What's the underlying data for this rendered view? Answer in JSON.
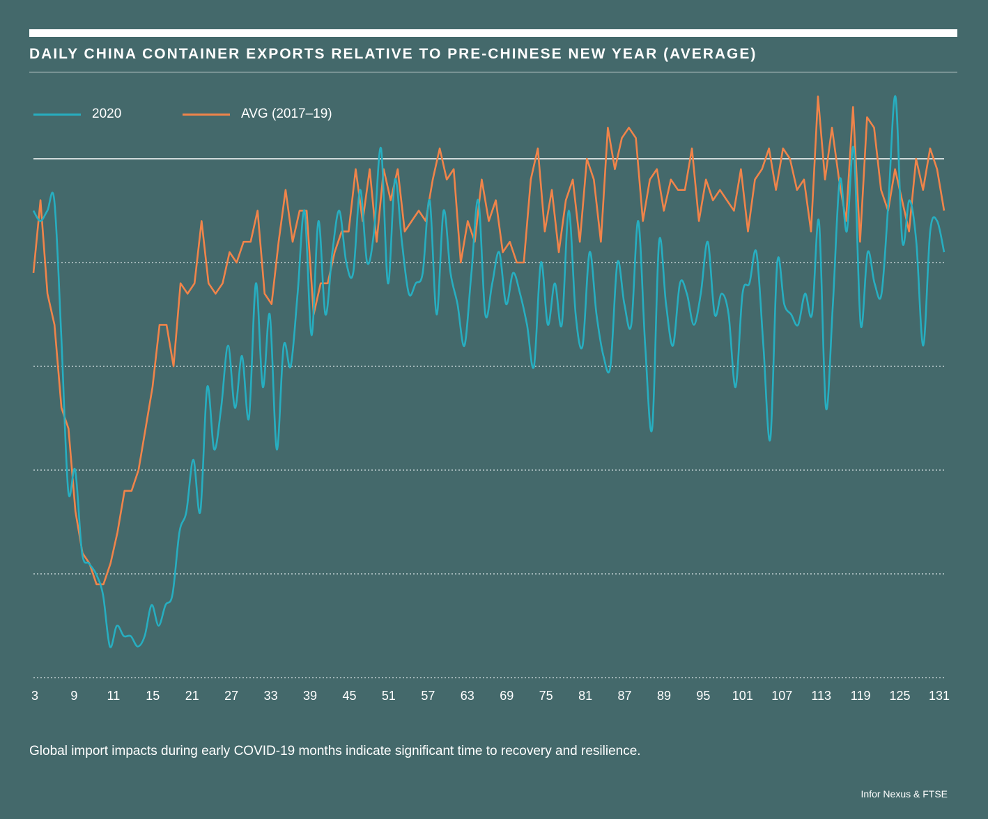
{
  "chart_data": {
    "type": "line",
    "title": "DAILY CHINA CONTAINER EXPORTS RELATIVE TO PRE-CHINESE NEW YEAR (AVERAGE)",
    "xlabel": "",
    "ylabel": "",
    "x_ticks": [
      "3",
      "9",
      "11",
      "15",
      "21",
      "27",
      "33",
      "39",
      "45",
      "51",
      "57",
      "63",
      "69",
      "75",
      "81",
      "87",
      "89",
      "95",
      "101",
      "107",
      "113",
      "119",
      "125",
      "131"
    ],
    "y_range": [
      -0.5,
      0.04
    ],
    "y_gridlines_dotted": [
      -0.1,
      -0.2,
      -0.3,
      -0.4,
      -0.5
    ],
    "y_reference_line": 0.0,
    "legend_position": "top-left",
    "series": [
      {
        "name": "2020",
        "color": "#27aec0",
        "values": [
          -0.05,
          -0.06,
          -0.05,
          -0.04,
          -0.17,
          -0.32,
          -0.3,
          -0.38,
          -0.39,
          -0.4,
          -0.42,
          -0.47,
          -0.45,
          -0.46,
          -0.46,
          -0.47,
          -0.46,
          -0.43,
          -0.45,
          -0.43,
          -0.42,
          -0.36,
          -0.34,
          -0.29,
          -0.34,
          -0.22,
          -0.28,
          -0.24,
          -0.18,
          -0.24,
          -0.19,
          -0.25,
          -0.12,
          -0.22,
          -0.15,
          -0.28,
          -0.18,
          -0.2,
          -0.13,
          -0.05,
          -0.17,
          -0.06,
          -0.15,
          -0.09,
          -0.05,
          -0.1,
          -0.11,
          -0.03,
          -0.1,
          -0.07,
          0.01,
          -0.12,
          -0.02,
          -0.08,
          -0.13,
          -0.12,
          -0.11,
          -0.04,
          -0.15,
          -0.05,
          -0.11,
          -0.14,
          -0.18,
          -0.11,
          -0.04,
          -0.15,
          -0.12,
          -0.09,
          -0.14,
          -0.11,
          -0.13,
          -0.16,
          -0.2,
          -0.1,
          -0.16,
          -0.12,
          -0.16,
          -0.05,
          -0.15,
          -0.18,
          -0.09,
          -0.15,
          -0.19,
          -0.2,
          -0.1,
          -0.14,
          -0.16,
          -0.06,
          -0.18,
          -0.26,
          -0.08,
          -0.14,
          -0.18,
          -0.12,
          -0.13,
          -0.16,
          -0.13,
          -0.08,
          -0.15,
          -0.13,
          -0.15,
          -0.22,
          -0.13,
          -0.12,
          -0.09,
          -0.18,
          -0.27,
          -0.1,
          -0.14,
          -0.15,
          -0.16,
          -0.13,
          -0.15,
          -0.06,
          -0.24,
          -0.14,
          -0.02,
          -0.07,
          0.01,
          -0.16,
          -0.09,
          -0.12,
          -0.13,
          -0.04,
          0.06,
          -0.08,
          -0.04,
          -0.08,
          -0.18,
          -0.07,
          -0.06,
          -0.09
        ]
      },
      {
        "name": "AVG (2017–19)",
        "color": "#f0844a",
        "values": [
          -0.11,
          -0.04,
          -0.13,
          -0.16,
          -0.24,
          -0.26,
          -0.34,
          -0.38,
          -0.39,
          -0.41,
          -0.41,
          -0.39,
          -0.36,
          -0.32,
          -0.32,
          -0.3,
          -0.26,
          -0.22,
          -0.16,
          -0.16,
          -0.2,
          -0.12,
          -0.13,
          -0.12,
          -0.06,
          -0.12,
          -0.13,
          -0.12,
          -0.09,
          -0.1,
          -0.08,
          -0.08,
          -0.05,
          -0.13,
          -0.14,
          -0.08,
          -0.03,
          -0.08,
          -0.05,
          -0.05,
          -0.15,
          -0.12,
          -0.12,
          -0.09,
          -0.07,
          -0.07,
          -0.01,
          -0.06,
          -0.01,
          -0.08,
          -0.01,
          -0.04,
          -0.01,
          -0.07,
          -0.06,
          -0.05,
          -0.06,
          -0.02,
          0.01,
          -0.02,
          -0.01,
          -0.1,
          -0.06,
          -0.08,
          -0.02,
          -0.06,
          -0.04,
          -0.09,
          -0.08,
          -0.1,
          -0.1,
          -0.02,
          0.01,
          -0.07,
          -0.03,
          -0.09,
          -0.04,
          -0.02,
          -0.08,
          0.0,
          -0.02,
          -0.08,
          0.03,
          -0.01,
          0.02,
          0.03,
          0.02,
          -0.06,
          -0.02,
          -0.01,
          -0.05,
          -0.02,
          -0.03,
          -0.03,
          0.01,
          -0.06,
          -0.02,
          -0.04,
          -0.03,
          -0.04,
          -0.05,
          -0.01,
          -0.07,
          -0.02,
          -0.01,
          0.01,
          -0.03,
          0.01,
          0.0,
          -0.03,
          -0.02,
          -0.07,
          0.06,
          -0.02,
          0.03,
          -0.02,
          -0.06,
          0.05,
          -0.08,
          0.04,
          0.03,
          -0.03,
          -0.05,
          -0.01,
          -0.04,
          -0.07,
          0.0,
          -0.03,
          0.01,
          -0.01,
          -0.05
        ]
      }
    ]
  },
  "caption": "Global import impacts during early COVID-19 months indicate significant time to recovery and resilience.",
  "source": "Infor Nexus & FTSE",
  "colors": {
    "background": "#44696b",
    "series_2020": "#27aec0",
    "series_avg": "#f0844a"
  }
}
